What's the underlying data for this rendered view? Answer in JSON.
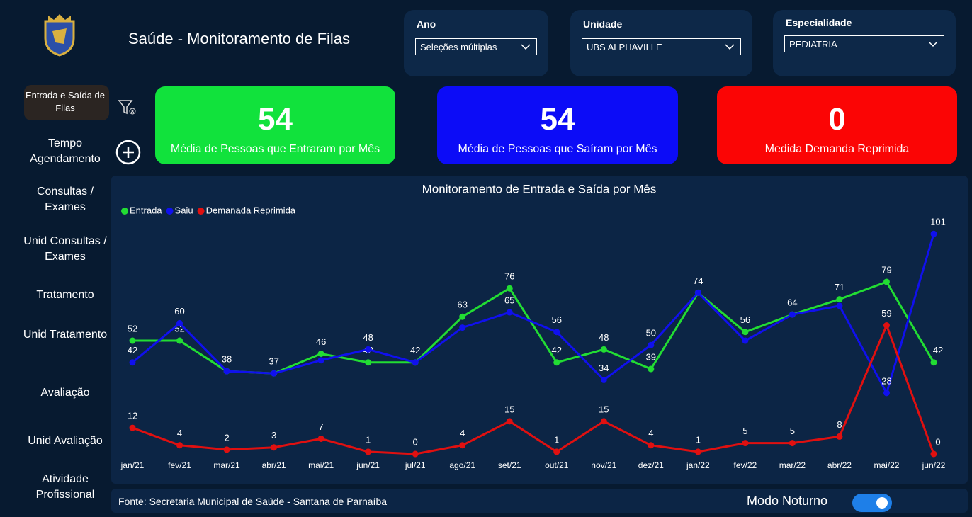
{
  "header": {
    "title": "Saúde - Monitoramento de Filas"
  },
  "filters": [
    {
      "label": "Ano",
      "value": "Seleções múltiplas"
    },
    {
      "label": "Unidade",
      "value": "UBS ALPHAVILLE"
    },
    {
      "label": "Especialidade",
      "value": "PEDIATRIA"
    }
  ],
  "nav": [
    "Entrada e Saída de Filas",
    "Tempo Agendamento",
    "Consultas / Exames",
    "Unid Consultas / Exames",
    "Tratamento",
    "Unid Tratamento",
    "Avaliação",
    "Unid Avaliação",
    "Atividade Profissional"
  ],
  "cards": [
    {
      "value": "54",
      "label": "Média de Pessoas que Entraram por Mês",
      "color": "#11e23c"
    },
    {
      "value": "54",
      "label": "Média de Pessoas que Saíram por Mês",
      "color": "#0c0cf7"
    },
    {
      "value": "0",
      "label": "Medida Demanda Reprimida",
      "color": "#fb0505"
    }
  ],
  "chart_data": {
    "type": "line",
    "title": "Monitoramento de Entrada e Saída por Mês",
    "categories": [
      "jan/21",
      "fev/21",
      "mar/21",
      "abr/21",
      "mai/21",
      "jun/21",
      "jul/21",
      "ago/21",
      "set/21",
      "out/21",
      "nov/21",
      "dez/21",
      "jan/22",
      "fev/22",
      "mar/22",
      "abr/22",
      "mai/22",
      "jun/22"
    ],
    "series": [
      {
        "name": "Entrada",
        "color": "#22dd33",
        "values": [
          52,
          52,
          38,
          37,
          46,
          42,
          42,
          63,
          76,
          42,
          48,
          39,
          74,
          56,
          64,
          71,
          79,
          42
        ]
      },
      {
        "name": "Saiu",
        "color": "#1010ee",
        "values": [
          42,
          60,
          38,
          37,
          43,
          48,
          42,
          58,
          65,
          56,
          34,
          50,
          74,
          52,
          64,
          68,
          28,
          101
        ]
      },
      {
        "name": "Demanada Reprimida",
        "color": "#e01010",
        "values": [
          12,
          4,
          2,
          3,
          7,
          1,
          0,
          4,
          15,
          1,
          15,
          4,
          1,
          5,
          5,
          8,
          59,
          0
        ]
      }
    ],
    "ylim": [
      0,
      105
    ],
    "legend": "top-left"
  },
  "footer": {
    "source": "Fonte: Secretaria Municipal de Saúde - Santana de Parnaíba",
    "toggle": "Modo Noturno"
  }
}
